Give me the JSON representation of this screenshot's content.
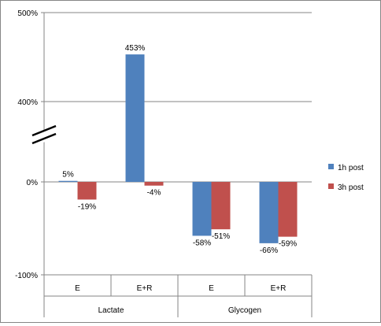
{
  "chart_data": {
    "type": "bar",
    "groups": [
      {
        "label": "Lactate",
        "categories": [
          "E",
          "E+R"
        ]
      },
      {
        "label": "Glycogen",
        "categories": [
          "E",
          "E+R"
        ]
      }
    ],
    "categories": [
      "E",
      "E+R",
      "E",
      "E+R"
    ],
    "series": [
      {
        "name": "1h post",
        "color": "#4F81BD",
        "values": [
          5,
          453,
          -58,
          -66
        ],
        "labels": [
          "5%",
          "453%",
          "-58%",
          "-66%"
        ]
      },
      {
        "name": "3h post",
        "color": "#C0504D",
        "values": [
          -19,
          -4,
          -51,
          -59
        ],
        "labels": [
          "-19%",
          "-4%",
          "-51%",
          "-59%"
        ]
      }
    ],
    "yticks": [
      {
        "value": -100,
        "label": "-100%"
      },
      {
        "value": 0,
        "label": "0%"
      },
      {
        "value": 400,
        "label": "400%"
      },
      {
        "value": 500,
        "label": "500%"
      }
    ],
    "axis_break": "between 0% and 400%",
    "gridlines": true,
    "legend_position": "right"
  }
}
